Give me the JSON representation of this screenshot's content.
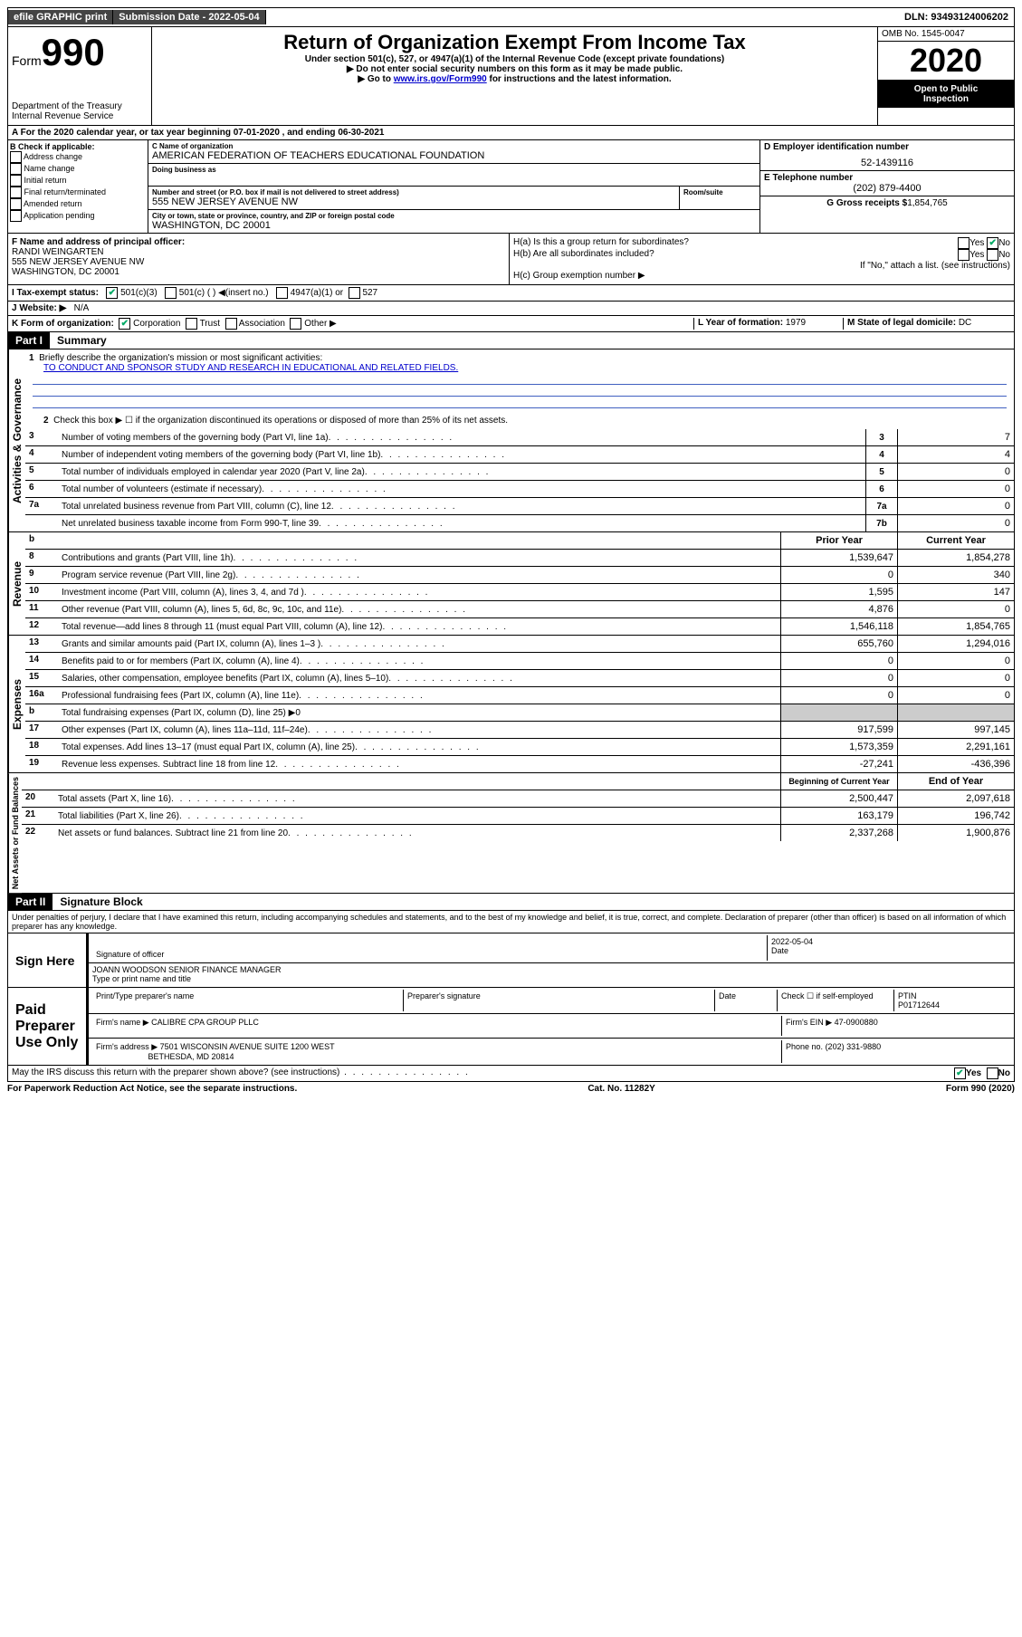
{
  "topbar": {
    "efile": "efile GRAPHIC print",
    "submission_label": "Submission Date - 2022-05-04",
    "dln": "DLN: 93493124006202"
  },
  "header": {
    "form_label": "Form",
    "form_number": "990",
    "dept": "Department of the Treasury",
    "irs": "Internal Revenue Service",
    "title": "Return of Organization Exempt From Income Tax",
    "sub1": "Under section 501(c), 527, or 4947(a)(1) of the Internal Revenue Code (except private foundations)",
    "sub2": "▶ Do not enter social security numbers on this form as it may be made public.",
    "sub3_pre": "▶ Go to ",
    "sub3_link": "www.irs.gov/Form990",
    "sub3_post": " for instructions and the latest information.",
    "omb": "OMB No. 1545-0047",
    "year": "2020",
    "inspect1": "Open to Public",
    "inspect2": "Inspection"
  },
  "row_a": "A For the 2020 calendar year, or tax year beginning 07-01-2020   , and ending 06-30-2021",
  "section_b": {
    "title": "B Check if applicable:",
    "opts": [
      "Address change",
      "Name change",
      "Initial return",
      "Final return/terminated",
      "Amended return",
      "Application pending"
    ]
  },
  "section_c": {
    "name_lbl": "C Name of organization",
    "name": "AMERICAN FEDERATION OF TEACHERS EDUCATIONAL FOUNDATION",
    "dba_lbl": "Doing business as",
    "addr_lbl": "Number and street (or P.O. box if mail is not delivered to street address)",
    "room_lbl": "Room/suite",
    "addr": "555 NEW JERSEY AVENUE NW",
    "city_lbl": "City or town, state or province, country, and ZIP or foreign postal code",
    "city": "WASHINGTON, DC  20001"
  },
  "section_de": {
    "ein_lbl": "D Employer identification number",
    "ein": "52-1439116",
    "phone_lbl": "E Telephone number",
    "phone": "(202) 879-4400",
    "gross_lbl": "G Gross receipts $",
    "gross": "1,854,765"
  },
  "section_f": {
    "lbl": "F  Name and address of principal officer:",
    "name": "RANDI WEINGARTEN",
    "addr": "555 NEW JERSEY AVENUE NW",
    "city": "WASHINGTON, DC  20001"
  },
  "section_h": {
    "a": "H(a)  Is this a group return for subordinates?",
    "b": "H(b)  Are all subordinates included?",
    "b_note": "If \"No,\" attach a list. (see instructions)",
    "c": "H(c)  Group exemption number ▶",
    "yes": "Yes",
    "no": "No"
  },
  "line_i": {
    "lbl": "I  Tax-exempt status:",
    "o1": "501(c)(3)",
    "o2": "501(c) (  ) ◀(insert no.)",
    "o3": "4947(a)(1) or",
    "o4": "527"
  },
  "line_j": {
    "lbl": "J  Website: ▶",
    "val": "N/A"
  },
  "line_k": {
    "lbl": "K Form of organization:",
    "o1": "Corporation",
    "o2": "Trust",
    "o3": "Association",
    "o4": "Other ▶",
    "l_lbl": "L Year of formation:",
    "l_val": "1979",
    "m_lbl": "M State of legal domicile:",
    "m_val": "DC"
  },
  "part1": {
    "header": "Part I",
    "title": "Summary"
  },
  "summary": {
    "q1": "Briefly describe the organization's mission or most significant activities:",
    "mission": "TO CONDUCT AND SPONSOR STUDY AND RESEARCH IN EDUCATIONAL AND RELATED FIELDS.",
    "q2": "Check this box ▶ ☐ if the organization discontinued its operations or disposed of more than 25% of its net assets.",
    "lines_single": [
      {
        "n": "3",
        "d": "Number of voting members of the governing body (Part VI, line 1a)",
        "box": "3",
        "v": "7"
      },
      {
        "n": "4",
        "d": "Number of independent voting members of the governing body (Part VI, line 1b)",
        "box": "4",
        "v": "4"
      },
      {
        "n": "5",
        "d": "Total number of individuals employed in calendar year 2020 (Part V, line 2a)",
        "box": "5",
        "v": "0"
      },
      {
        "n": "6",
        "d": "Total number of volunteers (estimate if necessary)",
        "box": "6",
        "v": "0"
      },
      {
        "n": "7a",
        "d": "Total unrelated business revenue from Part VIII, column (C), line 12",
        "box": "7a",
        "v": "0"
      },
      {
        "n": "",
        "d": "Net unrelated business taxable income from Form 990-T, line 39",
        "box": "7b",
        "v": "0"
      }
    ],
    "col_headers": {
      "n": "b",
      "prior": "Prior Year",
      "current": "Current Year"
    },
    "revenue": [
      {
        "n": "8",
        "d": "Contributions and grants (Part VIII, line 1h)",
        "p": "1,539,647",
        "c": "1,854,278"
      },
      {
        "n": "9",
        "d": "Program service revenue (Part VIII, line 2g)",
        "p": "0",
        "c": "340"
      },
      {
        "n": "10",
        "d": "Investment income (Part VIII, column (A), lines 3, 4, and 7d )",
        "p": "1,595",
        "c": "147"
      },
      {
        "n": "11",
        "d": "Other revenue (Part VIII, column (A), lines 5, 6d, 8c, 9c, 10c, and 11e)",
        "p": "4,876",
        "c": "0"
      },
      {
        "n": "12",
        "d": "Total revenue—add lines 8 through 11 (must equal Part VIII, column (A), line 12)",
        "p": "1,546,118",
        "c": "1,854,765"
      }
    ],
    "expenses": [
      {
        "n": "13",
        "d": "Grants and similar amounts paid (Part IX, column (A), lines 1–3 )",
        "p": "655,760",
        "c": "1,294,016"
      },
      {
        "n": "14",
        "d": "Benefits paid to or for members (Part IX, column (A), line 4)",
        "p": "0",
        "c": "0"
      },
      {
        "n": "15",
        "d": "Salaries, other compensation, employee benefits (Part IX, column (A), lines 5–10)",
        "p": "0",
        "c": "0"
      },
      {
        "n": "16a",
        "d": "Professional fundraising fees (Part IX, column (A), line 11e)",
        "p": "0",
        "c": "0"
      },
      {
        "n": "b",
        "d": "Total fundraising expenses (Part IX, column (D), line 25) ▶0",
        "p": "",
        "c": "",
        "shade": true
      },
      {
        "n": "17",
        "d": "Other expenses (Part IX, column (A), lines 11a–11d, 11f–24e)",
        "p": "917,599",
        "c": "997,145"
      },
      {
        "n": "18",
        "d": "Total expenses. Add lines 13–17 (must equal Part IX, column (A), line 25)",
        "p": "1,573,359",
        "c": "2,291,161"
      },
      {
        "n": "19",
        "d": "Revenue less expenses. Subtract line 18 from line 12",
        "p": "-27,241",
        "c": "-436,396"
      }
    ],
    "na_headers": {
      "prior": "Beginning of Current Year",
      "current": "End of Year"
    },
    "netassets": [
      {
        "n": "20",
        "d": "Total assets (Part X, line 16)",
        "p": "2,500,447",
        "c": "2,097,618"
      },
      {
        "n": "21",
        "d": "Total liabilities (Part X, line 26)",
        "p": "163,179",
        "c": "196,742"
      },
      {
        "n": "22",
        "d": "Net assets or fund balances. Subtract line 21 from line 20",
        "p": "2,337,268",
        "c": "1,900,876"
      }
    ],
    "vlabels": {
      "gov": "Activities & Governance",
      "rev": "Revenue",
      "exp": "Expenses",
      "na": "Net Assets or Fund Balances"
    }
  },
  "part2": {
    "header": "Part II",
    "title": "Signature Block",
    "perjury": "Under penalties of perjury, I declare that I have examined this return, including accompanying schedules and statements, and to the best of my knowledge and belief, it is true, correct, and complete. Declaration of preparer (other than officer) is based on all information of which preparer has any knowledge."
  },
  "sign": {
    "here": "Sign Here",
    "sig_lbl": "Signature of officer",
    "date_lbl": "Date",
    "date": "2022-05-04",
    "name": "JOANN WOODSON  SENIOR FINANCE MANAGER",
    "name_lbl": "Type or print name and title"
  },
  "paid": {
    "here": "Paid Preparer Use Only",
    "col1": "Print/Type preparer's name",
    "col2": "Preparer's signature",
    "col3": "Date",
    "col4_chk": "Check ☐ if self-employed",
    "col5_lbl": "PTIN",
    "col5": "P01712644",
    "firm_lbl": "Firm's name   ▶",
    "firm": "CALIBRE CPA GROUP PLLC",
    "ein_lbl": "Firm's EIN ▶",
    "ein": "47-0900880",
    "addr_lbl": "Firm's address ▶",
    "addr": "7501 WISCONSIN AVENUE SUITE 1200 WEST",
    "addr2": "BETHESDA, MD  20814",
    "phone_lbl": "Phone no.",
    "phone": "(202) 331-9880"
  },
  "discuss": {
    "q": "May the IRS discuss this return with the preparer shown above? (see instructions)",
    "yes": "Yes",
    "no": "No"
  },
  "footer": {
    "left": "For Paperwork Reduction Act Notice, see the separate instructions.",
    "mid": "Cat. No. 11282Y",
    "right": "Form 990 (2020)"
  }
}
